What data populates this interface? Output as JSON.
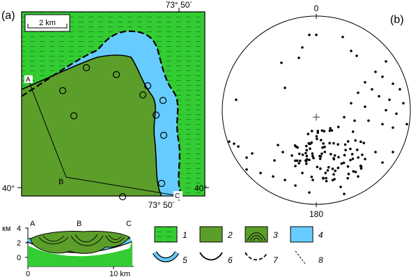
{
  "panel_a": {
    "label": "(a)",
    "scale_bar": "2 km",
    "coord_top": "73° 50´",
    "coord_bottom": "73° 50´",
    "lat_left": "40°",
    "lat_right": "40°",
    "points": [
      "A",
      "B",
      "C"
    ]
  },
  "panel_b": {
    "label": "(b)",
    "north": "0",
    "south": "180"
  },
  "section": {
    "km_label": "км",
    "y_ticks": [
      "4",
      "2",
      "0"
    ],
    "x_ticks": [
      "0",
      "10 km"
    ],
    "points": [
      "A",
      "B",
      "C"
    ]
  },
  "legend": {
    "items": [
      {
        "num": "1",
        "fill": "#33cc33",
        "kind": "dashed-green"
      },
      {
        "num": "2",
        "fill": "#5c9e2a",
        "kind": "solid"
      },
      {
        "num": "3",
        "fill": "#5c9e2a",
        "kind": "folds"
      },
      {
        "num": "4",
        "fill": "#66ccff",
        "kind": "solid"
      },
      {
        "num": "5",
        "fill": "#66ccff",
        "kind": "band-arc"
      },
      {
        "num": "6",
        "fill": "none",
        "kind": "solid-arc"
      },
      {
        "num": "7",
        "fill": "none",
        "kind": "dashed-arc"
      },
      {
        "num": "8",
        "fill": "none",
        "kind": "dashed-line"
      }
    ]
  },
  "colors": {
    "green_light": "#33cc33",
    "green_dark": "#5c9e2a",
    "blue": "#66ccff"
  }
}
